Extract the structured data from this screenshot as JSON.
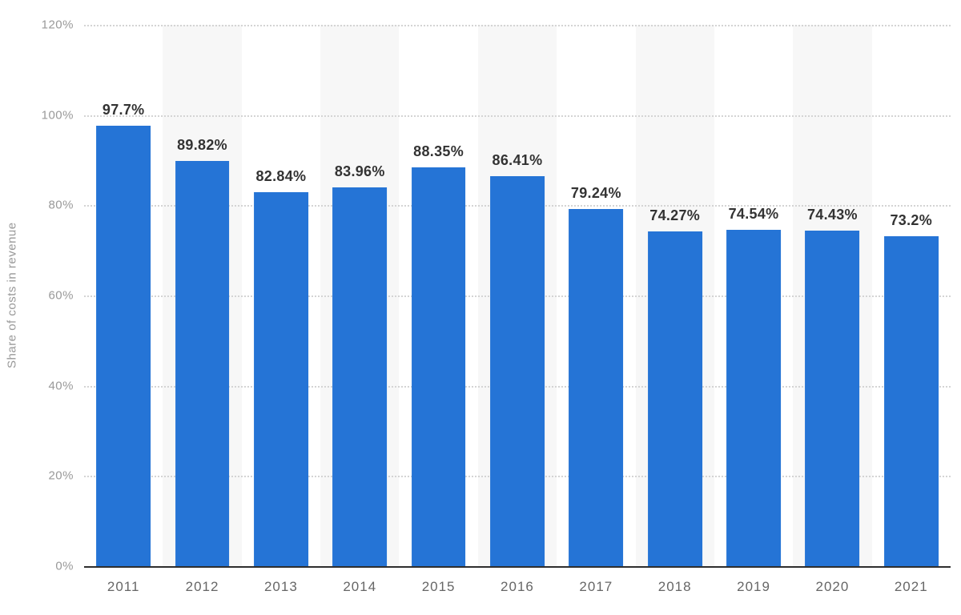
{
  "chart_data": {
    "type": "bar",
    "title": "",
    "xlabel": "",
    "ylabel": "Share of costs in revenue",
    "ylim": [
      0,
      120
    ],
    "grid": "horizontal-dotted",
    "legend": "none",
    "background_stripes": "alternating columns, even years shaded",
    "categories": [
      "2011",
      "2012",
      "2013",
      "2014",
      "2015",
      "2016",
      "2017",
      "2018",
      "2019",
      "2020",
      "2021"
    ],
    "values": [
      97.7,
      89.82,
      82.84,
      83.96,
      88.35,
      86.41,
      79.24,
      74.27,
      74.54,
      74.43,
      73.2
    ],
    "value_labels": [
      "97.7%",
      "89.82%",
      "82.84%",
      "83.96%",
      "88.35%",
      "86.41%",
      "79.24%",
      "74.27%",
      "74.54%",
      "74.43%",
      "73.2%"
    ],
    "yticks": [
      {
        "value": 0,
        "label": "0%"
      },
      {
        "value": 20,
        "label": "20%"
      },
      {
        "value": 40,
        "label": "40%"
      },
      {
        "value": 60,
        "label": "60%"
      },
      {
        "value": 80,
        "label": "80%"
      },
      {
        "value": 100,
        "label": "100%"
      },
      {
        "value": 120,
        "label": "120%"
      }
    ]
  },
  "colors": {
    "bar": "#2574d6",
    "stripe": "#f7f7f7",
    "grid": "#d4d4d4",
    "axis_line": "#2e2e2e",
    "tick_label": "#999999",
    "x_label": "#666666",
    "value_label": "#333333",
    "background": "#ffffff"
  }
}
